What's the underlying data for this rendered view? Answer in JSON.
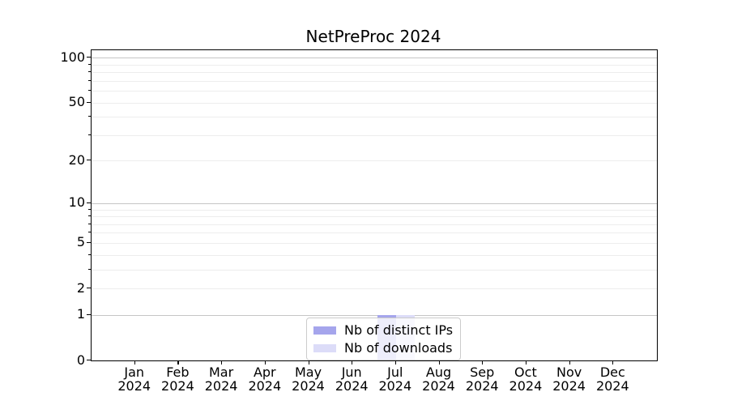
{
  "chart_data": {
    "type": "bar",
    "title": "NetPreProc 2024",
    "categories": [
      "Jan 2024",
      "Feb 2024",
      "Mar 2024",
      "Apr 2024",
      "May 2024",
      "Jun 2024",
      "Jul 2024",
      "Aug 2024",
      "Sep 2024",
      "Oct 2024",
      "Nov 2024",
      "Dec 2024"
    ],
    "series": [
      {
        "name": "Nb of distinct IPs",
        "color": "#a5a5ec",
        "values": [
          0,
          0,
          0,
          0,
          0,
          0,
          1,
          0,
          0,
          0,
          0,
          0
        ]
      },
      {
        "name": "Nb of downloads",
        "color": "#dcdcf8",
        "values": [
          0,
          0,
          0,
          0,
          0,
          0,
          1,
          0,
          0,
          0,
          0,
          0
        ]
      }
    ],
    "xlabel": "",
    "ylabel": "",
    "yscale": "log(1+y)",
    "ylim": [
      0,
      112
    ],
    "y_major_ticks": [
      0,
      1,
      2,
      5,
      10,
      20,
      50,
      100
    ],
    "y_major_gridlines": [
      1,
      10,
      100
    ],
    "y_minor_gridlines": [
      2,
      3,
      4,
      5,
      6,
      7,
      8,
      9,
      20,
      30,
      40,
      50,
      60,
      70,
      80,
      90
    ],
    "grid": true,
    "legend": {
      "position": "lower center"
    }
  }
}
